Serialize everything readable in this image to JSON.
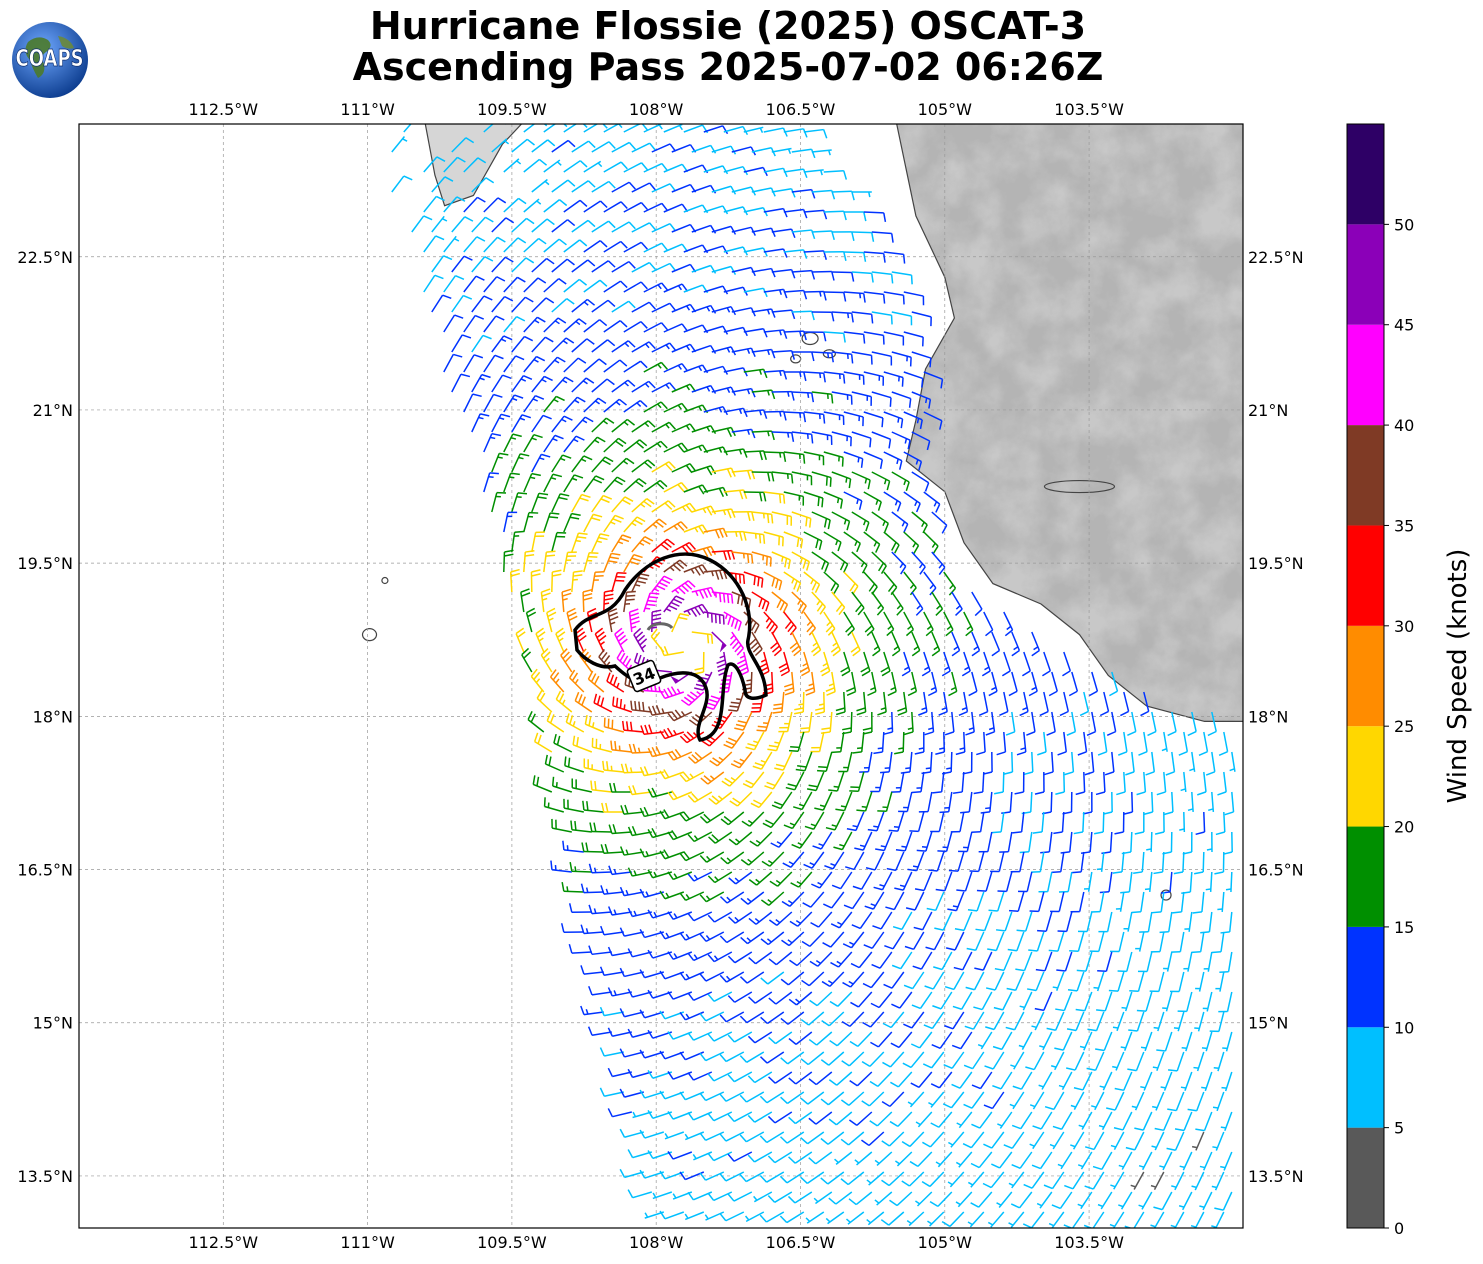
{
  "title": {
    "line1": "Hurricane Flossie (2025) OSCAT-3",
    "line2": "Ascending Pass 2025-07-02 06:26Z"
  },
  "logo": {
    "text": "COAPS"
  },
  "map": {
    "lon_range": [
      -114,
      -101.9
    ],
    "lat_range": [
      12.99,
      23.8
    ],
    "lon_ticks": [
      "112.5°W",
      "111°W",
      "109.5°W",
      "108°W",
      "106.5°W",
      "105°W",
      "103.5°W"
    ],
    "lon_tick_values": [
      -112.5,
      -111,
      -109.5,
      -108,
      -106.5,
      -105,
      -103.5
    ],
    "lat_ticks": [
      "22.5°N",
      "21°N",
      "19.5°N",
      "18°N",
      "16.5°N",
      "15°N",
      "13.5°N"
    ],
    "lat_tick_values": [
      22.5,
      21,
      19.5,
      18,
      16.5,
      15,
      13.5
    ],
    "grid": true,
    "terrain": "grayscale relief over land (Mexico)",
    "storm_center": {
      "lon": -107.7,
      "lat": 18.7
    },
    "wind_contour_label": "34"
  },
  "colorbar": {
    "label": "Wind Speed (knots)",
    "ticks": [
      "0",
      "5",
      "10",
      "15",
      "20",
      "25",
      "30",
      "35",
      "40",
      "45",
      "50"
    ],
    "bins": [
      {
        "min": 0,
        "max": 5,
        "color": "#595959"
      },
      {
        "min": 5,
        "max": 10,
        "color": "#00BFFF"
      },
      {
        "min": 10,
        "max": 15,
        "color": "#0033FF"
      },
      {
        "min": 15,
        "max": 20,
        "color": "#008F00"
      },
      {
        "min": 20,
        "max": 25,
        "color": "#FFD700"
      },
      {
        "min": 25,
        "max": 30,
        "color": "#FF8C00"
      },
      {
        "min": 30,
        "max": 35,
        "color": "#FF0000"
      },
      {
        "min": 35,
        "max": 40,
        "color": "#7F3A25"
      },
      {
        "min": 40,
        "max": 45,
        "color": "#FF00FF"
      },
      {
        "min": 45,
        "max": 50,
        "color": "#8B00B8"
      },
      {
        "min": 50,
        "max": 55,
        "color": "#2E0066"
      }
    ]
  }
}
